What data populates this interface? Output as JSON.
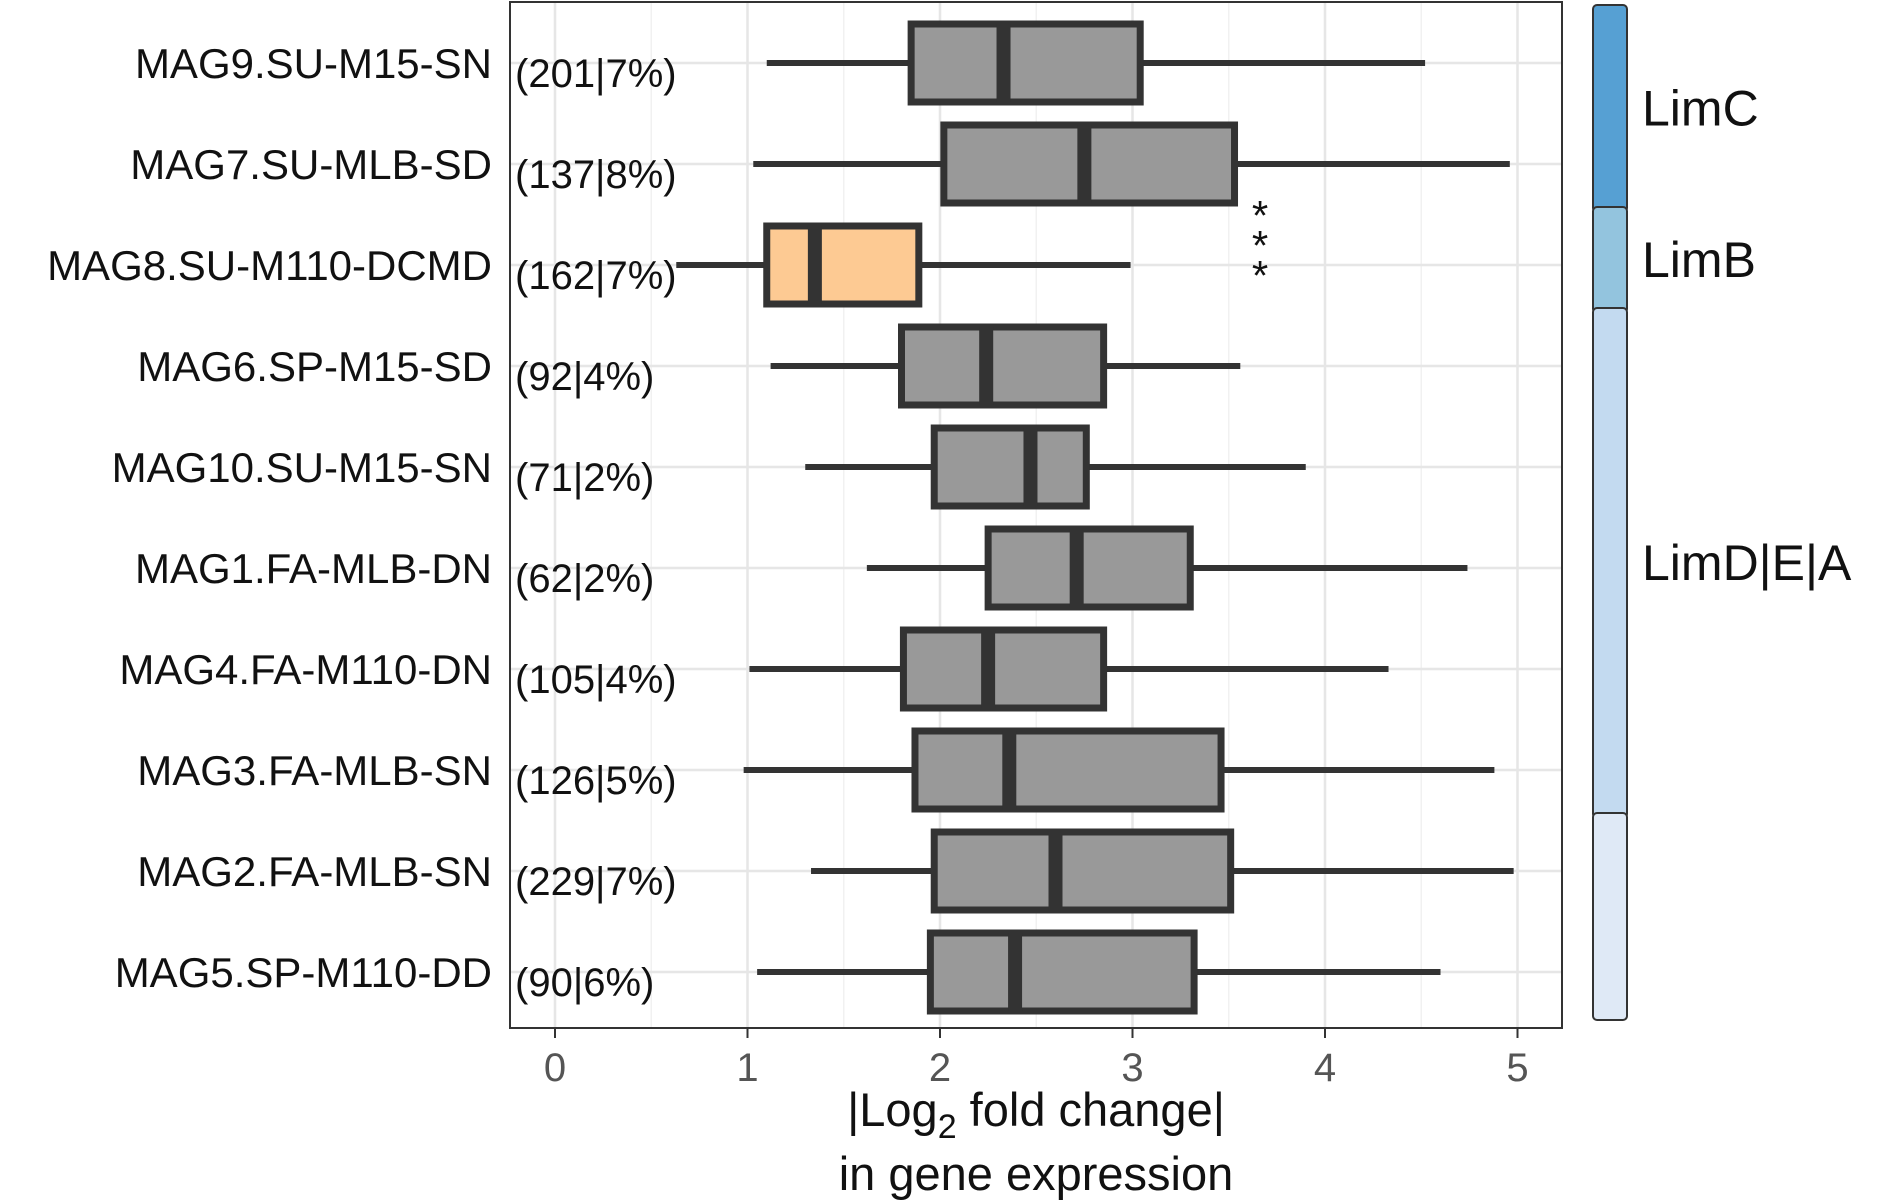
{
  "chart_data": {
    "type": "boxplot",
    "orientation": "horizontal",
    "xlabel": {
      "prefix": "|Log",
      "subscript": "2",
      "suffix": " fold change|",
      "line2": "in gene expression"
    },
    "xlim": [
      -0.25,
      5.25
    ],
    "xticks": [
      0,
      1,
      2,
      3,
      4,
      5
    ],
    "grid": true,
    "categories": [
      {
        "name": "MAG9.SU-M15-SN",
        "count": "(201|7%)",
        "whisker_low": 1.1,
        "q1": 1.85,
        "median": 2.33,
        "q3": 3.04,
        "whisker_high": 4.52,
        "color": "#999999",
        "significance": ""
      },
      {
        "name": "MAG7.SU-MLB-SD",
        "count": "(137|8%)",
        "whisker_low": 1.03,
        "q1": 2.02,
        "median": 2.75,
        "q3": 3.53,
        "whisker_high": 4.96,
        "color": "#999999",
        "significance": ""
      },
      {
        "name": "MAG8.SU-M110-DCMD",
        "count": "(162|7%)",
        "whisker_low": 0.63,
        "q1": 1.1,
        "median": 1.35,
        "q3": 1.89,
        "whisker_high": 2.99,
        "color": "#FDCA93",
        "significance": "***"
      },
      {
        "name": "MAG6.SP-M15-SD",
        "count": "(92|4%)",
        "whisker_low": 1.12,
        "q1": 1.8,
        "median": 2.24,
        "q3": 2.85,
        "whisker_high": 3.56,
        "color": "#999999",
        "significance": ""
      },
      {
        "name": "MAG10.SU-M15-SN",
        "count": "(71|2%)",
        "whisker_low": 1.3,
        "q1": 1.97,
        "median": 2.47,
        "q3": 2.76,
        "whisker_high": 3.9,
        "color": "#999999",
        "significance": ""
      },
      {
        "name": "MAG1.FA-MLB-DN",
        "count": "(62|2%)",
        "whisker_low": 1.62,
        "q1": 2.25,
        "median": 2.71,
        "q3": 3.3,
        "whisker_high": 4.74,
        "color": "#999999",
        "significance": ""
      },
      {
        "name": "MAG4.FA-M110-DN",
        "count": "(105|4%)",
        "whisker_low": 1.01,
        "q1": 1.81,
        "median": 2.25,
        "q3": 2.85,
        "whisker_high": 4.33,
        "color": "#999999",
        "significance": ""
      },
      {
        "name": "MAG3.FA-MLB-SN",
        "count": "(126|5%)",
        "whisker_low": 0.98,
        "q1": 1.87,
        "median": 2.36,
        "q3": 3.46,
        "whisker_high": 4.88,
        "color": "#999999",
        "significance": ""
      },
      {
        "name": "MAG2.FA-MLB-SN",
        "count": "(229|7%)",
        "whisker_low": 1.33,
        "q1": 1.97,
        "median": 2.6,
        "q3": 3.51,
        "whisker_high": 4.98,
        "color": "#999999",
        "significance": ""
      },
      {
        "name": "MAG5.SP-M110-DD",
        "count": "(90|6%)",
        "whisker_low": 1.05,
        "q1": 1.95,
        "median": 2.39,
        "q3": 3.32,
        "whisker_high": 4.6,
        "color": "#999999",
        "significance": ""
      }
    ],
    "groups": [
      {
        "label": "LimC",
        "rows": [
          0,
          1
        ],
        "color": "#56A0D3"
      },
      {
        "label": "LimB",
        "rows": [
          2,
          2
        ],
        "color": "#93C4DE"
      },
      {
        "label": "LimD|E|A",
        "rows": [
          3,
          7
        ],
        "color": "#C3DAF0"
      },
      {
        "label": "",
        "rows": [
          8,
          9
        ],
        "color": "#DFE9F6"
      }
    ]
  }
}
